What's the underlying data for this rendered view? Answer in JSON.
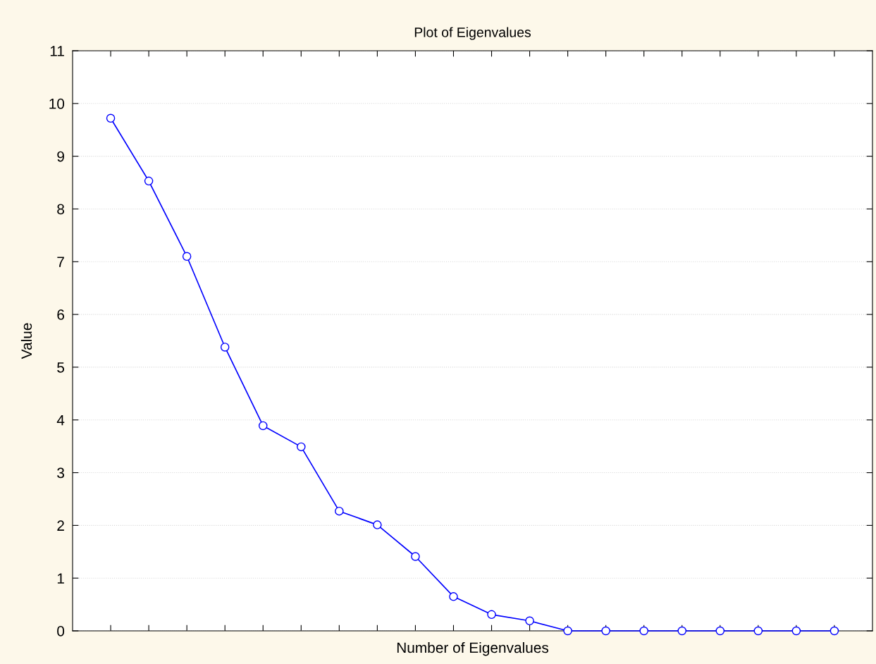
{
  "chart_data": {
    "type": "line",
    "title": "Plot of Eigenvalues",
    "xlabel": "Number of Eigenvalues",
    "ylabel": "Value",
    "categories": [
      null,
      null,
      null,
      null,
      null,
      null,
      null,
      null,
      null,
      null,
      null,
      null,
      null,
      null,
      null,
      null,
      null,
      null,
      null,
      null
    ],
    "series": [
      {
        "color": "#0000ff",
        "values": [
          9.72,
          8.53,
          7.1,
          5.38,
          3.89,
          3.49,
          2.27,
          2.01,
          1.41,
          0.65,
          0.31,
          0.19,
          0,
          0,
          0,
          0,
          0,
          0,
          0,
          0
        ]
      }
    ],
    "ylim": [
      0,
      11
    ],
    "yticks": [
      0,
      1,
      2,
      3,
      4,
      5,
      6,
      7,
      8,
      9,
      10,
      11
    ],
    "grid": "y",
    "marker": "circle",
    "line_style": "solid"
  }
}
